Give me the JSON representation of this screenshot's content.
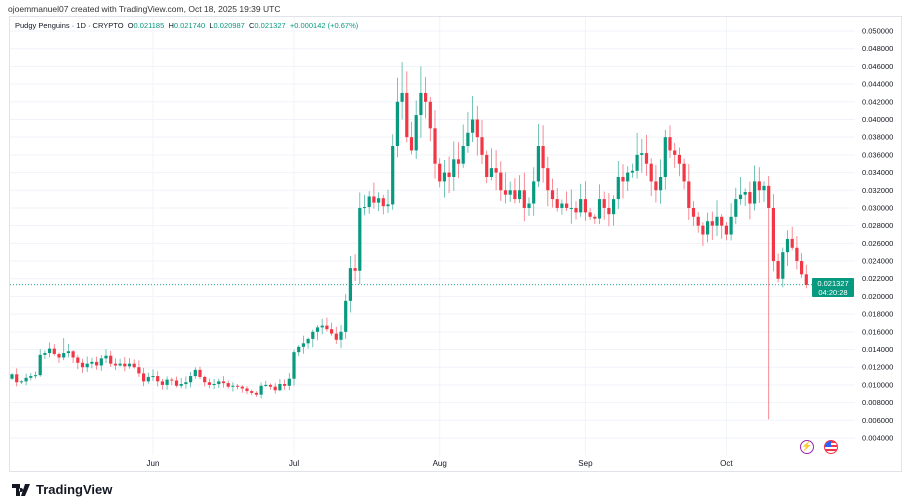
{
  "credit": "ojoemmanuel07 created with TradingView.com, Oct 18, 2025 19:39 UTC",
  "legend": {
    "symbol": "Pudgy Penguins · 1D · CRYPTO",
    "o_label": "O",
    "o": "0.021185",
    "h_label": "H",
    "h": "0.021740",
    "l_label": "L",
    "l": "0.020987",
    "c_label": "C",
    "c": "0.021327",
    "change": "+0.000142 (+0.67%)"
  },
  "price_tag": {
    "price": "0.021327",
    "countdown": "04:20:28"
  },
  "brand": "TradingView",
  "colors": {
    "up": "#089981",
    "down": "#f23645",
    "grid": "#f0f3fa",
    "accent": "#089981"
  },
  "chart_data": {
    "type": "candlestick",
    "title": "Pudgy Penguins · 1D · CRYPTO",
    "start_date": "2025-05-02",
    "interval": "1D",
    "first_open": 0.0107,
    "closes": [
      0.0112,
      0.0103,
      0.0104,
      0.0108,
      0.011,
      0.0111,
      0.0134,
      0.0136,
      0.0141,
      0.0135,
      0.0131,
      0.0136,
      0.0138,
      0.0131,
      0.0125,
      0.012,
      0.0124,
      0.0126,
      0.0122,
      0.013,
      0.0133,
      0.0124,
      0.0122,
      0.0124,
      0.0121,
      0.0124,
      0.012,
      0.0113,
      0.0104,
      0.0109,
      0.011,
      0.0104,
      0.01,
      0.0106,
      0.0105,
      0.0099,
      0.0101,
      0.0103,
      0.011,
      0.0117,
      0.0109,
      0.0103,
      0.01,
      0.0101,
      0.0104,
      0.0102,
      0.0098,
      0.0099,
      0.0098,
      0.0096,
      0.0093,
      0.0091,
      0.0089,
      0.0099,
      0.01,
      0.0098,
      0.0094,
      0.0101,
      0.0099,
      0.0107,
      0.0137,
      0.0143,
      0.0147,
      0.0152,
      0.016,
      0.0165,
      0.0167,
      0.0163,
      0.0158,
      0.0151,
      0.016,
      0.0195,
      0.0232,
      0.0229,
      0.03,
      0.0301,
      0.0313,
      0.0306,
      0.0311,
      0.0302,
      0.0304,
      0.037,
      0.042,
      0.043,
      0.038,
      0.0365,
      0.0405,
      0.043,
      0.042,
      0.039,
      0.035,
      0.033,
      0.034,
      0.0335,
      0.0355,
      0.035,
      0.037,
      0.0385,
      0.04,
      0.038,
      0.036,
      0.0335,
      0.0345,
      0.034,
      0.032,
      0.0315,
      0.032,
      0.031,
      0.032,
      0.03,
      0.0305,
      0.033,
      0.037,
      0.0345,
      0.032,
      0.031,
      0.03,
      0.0305,
      0.03,
      0.03,
      0.0295,
      0.031,
      0.0295,
      0.029,
      0.0288,
      0.031,
      0.03,
      0.0293,
      0.031,
      0.0335,
      0.033,
      0.034,
      0.0342,
      0.036,
      0.0362,
      0.035,
      0.033,
      0.032,
      0.0335,
      0.038,
      0.0365,
      0.036,
      0.035,
      0.033,
      0.03,
      0.029,
      0.028,
      0.027,
      0.0285,
      0.028,
      0.029,
      0.028,
      0.027,
      0.029,
      0.031,
      0.0315,
      0.0318,
      0.0305,
      0.033,
      0.032,
      0.0325,
      0.03,
      0.024,
      0.022,
      0.025,
      0.0265,
      0.0255,
      0.024,
      0.0225,
      0.0213
    ],
    "wick_overrides": [
      {
        "index": 11,
        "high": 0.0153
      },
      {
        "index": 83,
        "high": 0.0465
      },
      {
        "index": 87,
        "high": 0.046
      },
      {
        "index": 161,
        "low": 0.0061
      }
    ],
    "last_price": 0.021327,
    "x_ticks": [
      {
        "label": "Jun",
        "index": 30
      },
      {
        "label": "Jul",
        "index": 60
      },
      {
        "label": "Aug",
        "index": 91
      },
      {
        "label": "Sep",
        "index": 122
      },
      {
        "label": "Oct",
        "index": 152
      }
    ],
    "y_ticks": [
      "0.004000",
      "0.006000",
      "0.008000",
      "0.010000",
      "0.012000",
      "0.014000",
      "0.016000",
      "0.018000",
      "0.020000",
      "0.022000",
      "0.024000",
      "0.026000",
      "0.028000",
      "0.030000",
      "0.032000",
      "0.034000",
      "0.036000",
      "0.038000",
      "0.040000",
      "0.042000",
      "0.044000",
      "0.046000",
      "0.048000",
      "0.050000"
    ],
    "ylim": [
      0.004,
      0.05
    ],
    "grid": true
  }
}
